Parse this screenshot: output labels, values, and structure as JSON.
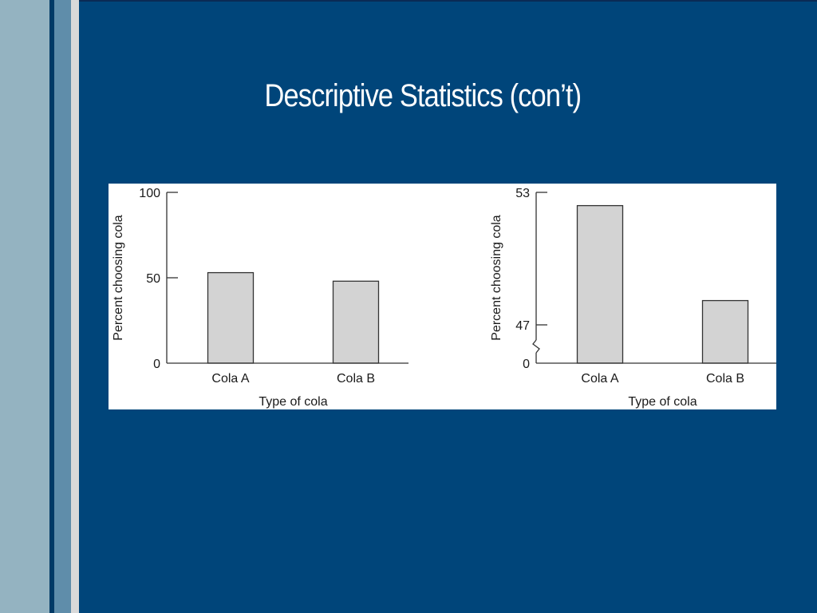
{
  "slide": {
    "title": "Descriptive Statistics (con’t)"
  },
  "colors": {
    "background": "#00457a",
    "bar_fill": "#d3d3d3",
    "bar_stroke": "#333333"
  },
  "chart_data": [
    {
      "type": "bar",
      "categories": [
        "Cola A",
        "Cola B"
      ],
      "values": [
        53,
        48
      ],
      "xlabel": "Type of cola",
      "ylabel": "Percent choosing cola",
      "ylim": [
        0,
        100
      ],
      "yticks": [
        "0",
        "50",
        "100"
      ],
      "axis_break": false
    },
    {
      "type": "bar",
      "categories": [
        "Cola A",
        "Cola B"
      ],
      "values": [
        52.4,
        48.1
      ],
      "xlabel": "Type of cola",
      "ylabel": "Percent choosing cola",
      "ylim": [
        47,
        53
      ],
      "yticks": [
        "0",
        "47",
        "53"
      ],
      "axis_break": true
    }
  ]
}
